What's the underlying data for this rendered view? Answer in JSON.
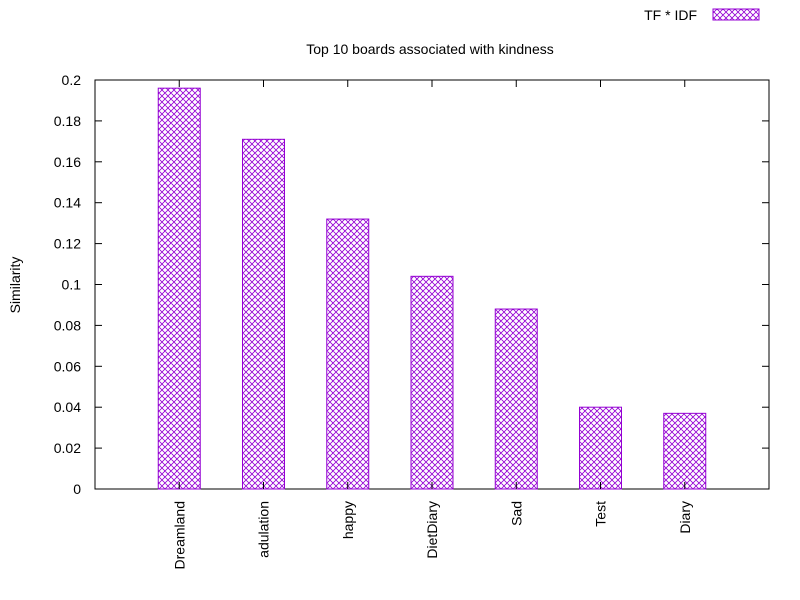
{
  "chart_data": {
    "type": "bar",
    "title": "Top 10 boards associated with kindness",
    "xlabel": "",
    "ylabel": "Similarity",
    "ylim": [
      0,
      0.2
    ],
    "yticks": [
      "0",
      "0.02",
      "0.04",
      "0.06",
      "0.08",
      "0.1",
      "0.12",
      "0.14",
      "0.16",
      "0.18",
      "0.2"
    ],
    "categories": [
      "Dreamland",
      "adulation",
      "happy",
      "DietDiary",
      "Sad",
      "Test",
      "Diary"
    ],
    "series": [
      {
        "name": "TF * IDF",
        "values": [
          0.196,
          0.171,
          0.132,
          0.104,
          0.088,
          0.04,
          0.037
        ]
      }
    ],
    "grid": false,
    "legend_position": "top-right",
    "bar_color": "#9400d3",
    "fill_pattern": "crosshatch"
  }
}
